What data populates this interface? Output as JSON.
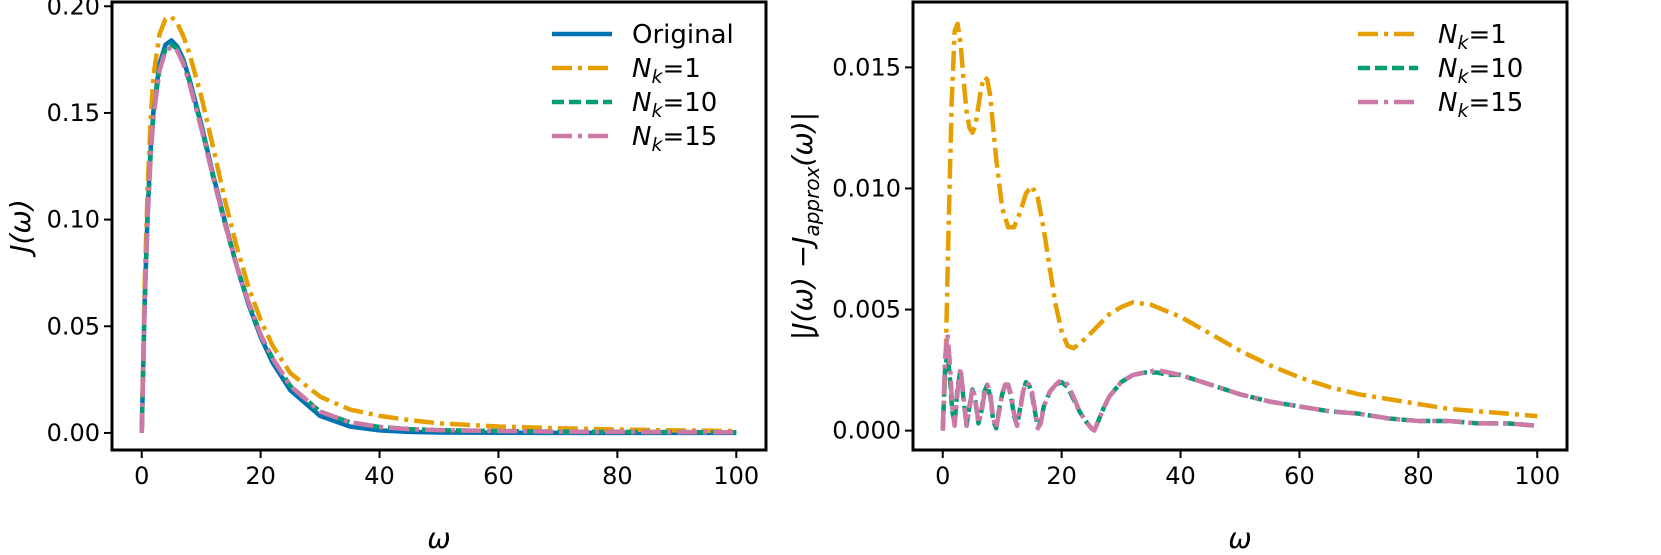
{
  "chart_data": [
    {
      "type": "line",
      "xlabel": "ω",
      "ylabel": "J(ω)",
      "xlim": [
        -5,
        105
      ],
      "ylim": [
        -0.008,
        0.202
      ],
      "xticks": [
        0,
        20,
        40,
        60,
        80,
        100
      ],
      "yticks": [
        0.0,
        0.05,
        0.1,
        0.15,
        0.2
      ],
      "ytick_labels": [
        "0.00",
        "0.05",
        "0.10",
        "0.15",
        "0.20"
      ],
      "grid": false,
      "legend_position": "top-right",
      "series": [
        {
          "name": "Original",
          "color": "#0072B2",
          "style": "solid",
          "x": [
            0,
            0.5,
            1,
            1.5,
            2,
            3,
            4,
            5,
            6,
            7,
            8,
            10,
            12,
            14,
            16,
            18,
            20,
            22,
            25,
            30,
            35,
            40,
            45,
            50,
            60,
            70,
            80,
            90,
            100
          ],
          "y": [
            0,
            0.062,
            0.104,
            0.133,
            0.152,
            0.173,
            0.182,
            0.184,
            0.181,
            0.175,
            0.166,
            0.145,
            0.121,
            0.099,
            0.078,
            0.06,
            0.045,
            0.033,
            0.02,
            0.008,
            0.003,
            0.0012,
            0.0005,
            0.0002,
            0.0001,
            0,
            0,
            0,
            0
          ]
        },
        {
          "name": "Nk=1",
          "name_main": "N",
          "name_sub": "k",
          "name_rest": "=1",
          "color": "#E69F00",
          "style": "dashdot",
          "x": [
            0,
            0.5,
            1,
            1.5,
            2,
            3,
            4,
            5,
            6,
            7,
            8,
            10,
            12,
            14,
            16,
            18,
            20,
            22,
            25,
            30,
            35,
            40,
            45,
            50,
            60,
            70,
            80,
            90,
            100
          ],
          "y": [
            0,
            0.07,
            0.115,
            0.147,
            0.168,
            0.187,
            0.194,
            0.195,
            0.192,
            0.186,
            0.178,
            0.158,
            0.134,
            0.109,
            0.087,
            0.068,
            0.053,
            0.041,
            0.028,
            0.017,
            0.011,
            0.008,
            0.006,
            0.0045,
            0.003,
            0.0022,
            0.0016,
            0.0012,
            0.0009
          ]
        },
        {
          "name": "Nk=10",
          "name_main": "N",
          "name_sub": "k",
          "name_rest": "=10",
          "color": "#009E73",
          "style": "dashed",
          "x": [
            0,
            0.5,
            1,
            1.5,
            2,
            3,
            4,
            5,
            6,
            7,
            8,
            10,
            12,
            14,
            16,
            18,
            20,
            22,
            25,
            30,
            35,
            40,
            45,
            50,
            60,
            70,
            80,
            90,
            100
          ],
          "y": [
            0,
            0.061,
            0.102,
            0.131,
            0.15,
            0.171,
            0.18,
            0.182,
            0.18,
            0.174,
            0.165,
            0.144,
            0.12,
            0.098,
            0.078,
            0.061,
            0.046,
            0.035,
            0.022,
            0.01,
            0.005,
            0.0028,
            0.0018,
            0.0013,
            0.0009,
            0.0006,
            0.0005,
            0.0004,
            0.0003
          ]
        },
        {
          "name": "Nk=15",
          "name_main": "N",
          "name_sub": "k",
          "name_rest": "=15",
          "color": "#CC79A7",
          "style": "dashdot",
          "x": [
            0,
            0.5,
            1,
            1.5,
            2,
            3,
            4,
            5,
            6,
            7,
            8,
            10,
            12,
            14,
            16,
            18,
            20,
            22,
            25,
            30,
            35,
            40,
            45,
            50,
            60,
            70,
            80,
            90,
            100
          ],
          "y": [
            0,
            0.06,
            0.101,
            0.13,
            0.149,
            0.17,
            0.179,
            0.181,
            0.179,
            0.173,
            0.164,
            0.143,
            0.12,
            0.098,
            0.078,
            0.061,
            0.046,
            0.035,
            0.022,
            0.01,
            0.005,
            0.0028,
            0.0018,
            0.0013,
            0.0009,
            0.0006,
            0.0005,
            0.0004,
            0.0003
          ]
        }
      ]
    },
    {
      "type": "line",
      "xlabel": "ω",
      "ylabel": "|J(ω) − Japprox(ω)|",
      "ylabel_pre": "|J(ω) −J",
      "ylabel_sub": "approx",
      "ylabel_post": "(ω)|",
      "xlim": [
        -5,
        105
      ],
      "ylim": [
        -0.0008,
        0.0177
      ],
      "xticks": [
        0,
        20,
        40,
        60,
        80,
        100
      ],
      "yticks": [
        0.0,
        0.005,
        0.01,
        0.015
      ],
      "ytick_labels": [
        "0.000",
        "0.005",
        "0.010",
        "0.015"
      ],
      "grid": false,
      "legend_position": "top-right",
      "series": [
        {
          "name": "Nk=1",
          "name_main": "N",
          "name_sub": "k",
          "name_rest": "=1",
          "color": "#E69F00",
          "style": "dashdot",
          "x": [
            0,
            0.5,
            1,
            1.5,
            2,
            2.5,
            3,
            3.5,
            4,
            4.5,
            5,
            5.5,
            6,
            6.5,
            7,
            7.5,
            8,
            8.5,
            9,
            10,
            11,
            12,
            13,
            14,
            15,
            16,
            17,
            18,
            19,
            20,
            21,
            22,
            24,
            26,
            28,
            30,
            32,
            35,
            38,
            40,
            45,
            50,
            55,
            60,
            65,
            70,
            75,
            80,
            85,
            90,
            95,
            100
          ],
          "y": [
            0,
            0.003,
            0.0085,
            0.0135,
            0.0165,
            0.0168,
            0.016,
            0.0145,
            0.0132,
            0.0125,
            0.0123,
            0.0126,
            0.0134,
            0.0142,
            0.0146,
            0.0145,
            0.0138,
            0.0125,
            0.0112,
            0.0092,
            0.0084,
            0.0084,
            0.009,
            0.0098,
            0.0101,
            0.0096,
            0.0083,
            0.0067,
            0.0052,
            0.0041,
            0.0035,
            0.0034,
            0.0038,
            0.0043,
            0.0048,
            0.0051,
            0.0053,
            0.0052,
            0.0049,
            0.0047,
            0.004,
            0.0033,
            0.0027,
            0.0022,
            0.0018,
            0.0015,
            0.0013,
            0.0011,
            0.0009,
            0.0008,
            0.0007,
            0.0006
          ]
        },
        {
          "name": "Nk=10",
          "name_main": "N",
          "name_sub": "k",
          "name_rest": "=10",
          "color": "#009E73",
          "style": "dashed",
          "x": [
            0,
            0.4,
            0.8,
            1.2,
            1.6,
            2.0,
            2.5,
            3.0,
            3.5,
            4.0,
            4.5,
            5.0,
            5.5,
            6.0,
            6.5,
            7.0,
            7.5,
            8.0,
            8.5,
            9.0,
            9.5,
            10.0,
            10.5,
            11.0,
            11.5,
            12.0,
            12.5,
            13.0,
            13.5,
            14.0,
            14.5,
            15.0,
            15.5,
            16.0,
            16.5,
            17.0,
            18.0,
            19.0,
            20.0,
            21.0,
            22.0,
            23.0,
            24.0,
            25.0,
            25.5,
            26.0,
            27.0,
            28.0,
            30.0,
            32.0,
            34.0,
            36.0,
            38.0,
            40.0,
            45.0,
            50.0,
            55.0,
            60.0,
            65.0,
            70.0,
            75.0,
            80.0,
            85.0,
            90.0,
            95.0,
            100.0
          ],
          "y": [
            0,
            0.0025,
            0.0032,
            0.0022,
            0.0008,
            0.0003,
            0.0018,
            0.0025,
            0.0013,
            0.0002,
            0.001,
            0.0017,
            0.0012,
            0.0003,
            0.0008,
            0.0016,
            0.0019,
            0.0014,
            0.0004,
            0.0001,
            0.0009,
            0.0015,
            0.0019,
            0.0019,
            0.0014,
            0.0006,
            0.0002,
            0.0009,
            0.0016,
            0.002,
            0.0019,
            0.0015,
            0.0008,
            0.0001,
            0.0004,
            0.001,
            0.0016,
            0.0019,
            0.002,
            0.0018,
            0.0013,
            0.0008,
            0.0004,
            0.0001,
            0.0,
            0.0003,
            0.0009,
            0.0014,
            0.002,
            0.0023,
            0.0024,
            0.0024,
            0.0023,
            0.0023,
            0.0019,
            0.0015,
            0.0012,
            0.001,
            0.0008,
            0.0007,
            0.0005,
            0.0004,
            0.0004,
            0.0003,
            0.0003,
            0.0002
          ]
        },
        {
          "name": "Nk=15",
          "name_main": "N",
          "name_sub": "k",
          "name_rest": "=15",
          "color": "#CC79A7",
          "style": "dashdot",
          "x": [
            0,
            0.4,
            0.8,
            1.2,
            1.6,
            2.0,
            2.5,
            3.0,
            3.5,
            4.0,
            4.5,
            5.0,
            5.5,
            6.0,
            6.5,
            7.0,
            7.5,
            8.0,
            8.5,
            9.0,
            9.5,
            10.0,
            10.5,
            11.0,
            11.5,
            12.0,
            12.5,
            13.0,
            13.5,
            14.0,
            14.5,
            15.0,
            15.5,
            16.0,
            16.5,
            17.0,
            18.0,
            19.0,
            20.0,
            21.0,
            22.0,
            23.0,
            24.0,
            25.0,
            25.5,
            26.0,
            27.0,
            28.0,
            30.0,
            32.0,
            34.0,
            36.0,
            38.0,
            40.0,
            45.0,
            50.0,
            55.0,
            60.0,
            65.0,
            70.0,
            75.0,
            80.0,
            85.0,
            90.0,
            95.0,
            100.0
          ],
          "y": [
            0,
            0.003,
            0.004,
            0.0028,
            0.001,
            0.0002,
            0.0016,
            0.0026,
            0.0014,
            0.0002,
            0.0009,
            0.0018,
            0.0013,
            0.0003,
            0.0007,
            0.0015,
            0.0019,
            0.0015,
            0.0005,
            0.0001,
            0.0008,
            0.0015,
            0.0019,
            0.0019,
            0.0015,
            0.0007,
            0.0002,
            0.0008,
            0.0016,
            0.002,
            0.0019,
            0.0016,
            0.0009,
            0.0001,
            0.0003,
            0.001,
            0.0016,
            0.0019,
            0.0021,
            0.0019,
            0.0014,
            0.0008,
            0.0004,
            0.0001,
            0.0,
            0.0003,
            0.0009,
            0.0014,
            0.002,
            0.0023,
            0.0024,
            0.0025,
            0.0024,
            0.0023,
            0.0019,
            0.0015,
            0.0012,
            0.001,
            0.0008,
            0.0007,
            0.0005,
            0.0004,
            0.0004,
            0.0003,
            0.0003,
            0.0002
          ]
        }
      ]
    }
  ]
}
